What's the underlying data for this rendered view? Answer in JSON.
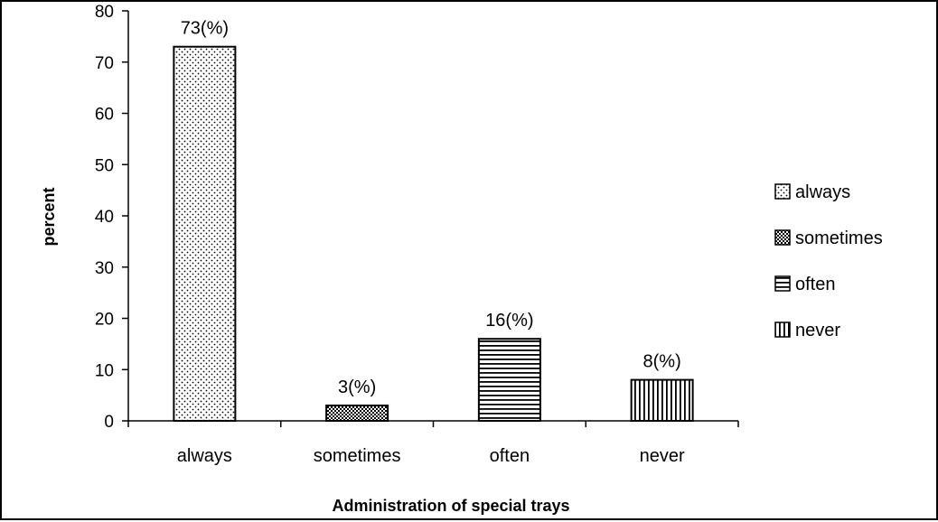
{
  "chart_data": {
    "type": "bar",
    "categories": [
      "always",
      "sometimes",
      "often",
      "never"
    ],
    "values": [
      73,
      3,
      16,
      8
    ],
    "data_labels": [
      "73(%)",
      "3(%)",
      "16(%)",
      "8(%)"
    ],
    "xlabel": "Administration  of special trays",
    "ylabel": "percent",
    "ylim": [
      0,
      80
    ],
    "yticks": [
      0,
      10,
      20,
      30,
      40,
      50,
      60,
      70,
      80
    ],
    "grid": false,
    "legend": {
      "placement": "right",
      "entries": [
        "always",
        "sometimes",
        "often",
        "never"
      ]
    },
    "patterns": [
      "dots",
      "dense-checker",
      "horizontal-lines",
      "vertical-lines"
    ],
    "colors": {
      "bar_fill": "#ffffff",
      "bar_stroke": "#000000",
      "axis": "#000000"
    }
  }
}
